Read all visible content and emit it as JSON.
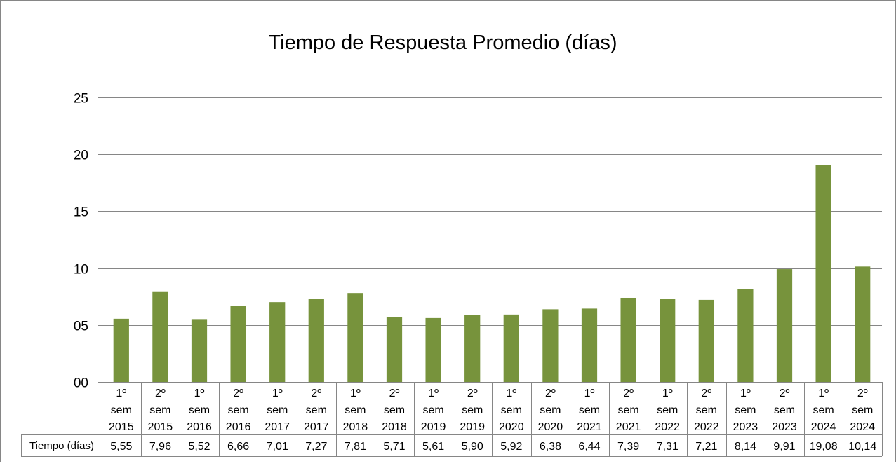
{
  "chart_data": {
    "type": "bar",
    "title": "Tiempo de Respuesta Promedio (días)",
    "xlabel": "",
    "ylabel": "",
    "ylim": [
      0,
      25
    ],
    "yticks": [
      0,
      5,
      10,
      15,
      20,
      25
    ],
    "ytick_labels": [
      "00",
      "05",
      "10",
      "15",
      "20",
      "25"
    ],
    "grid": true,
    "legend": "none",
    "bar_color": "#77933c",
    "categories": [
      [
        "1º",
        "sem",
        "2015"
      ],
      [
        "2º",
        "sem",
        "2015"
      ],
      [
        "1º",
        "sem",
        "2016"
      ],
      [
        "2º",
        "sem",
        "2016"
      ],
      [
        "1º",
        "sem",
        "2017"
      ],
      [
        "2º",
        "sem",
        "2017"
      ],
      [
        "1º",
        "sem",
        "2018"
      ],
      [
        "2º",
        "sem",
        "2018"
      ],
      [
        "1º",
        "sem",
        "2019"
      ],
      [
        "2º",
        "sem",
        "2019"
      ],
      [
        "1º",
        "sem",
        "2020"
      ],
      [
        "2º",
        "sem",
        "2020"
      ],
      [
        "1º",
        "sem",
        "2021"
      ],
      [
        "2º",
        "sem",
        "2021"
      ],
      [
        "1º",
        "sem",
        "2022"
      ],
      [
        "2º",
        "sem",
        "2022"
      ],
      [
        "1º",
        "sem",
        "2023"
      ],
      [
        "2º",
        "sem",
        "2023"
      ],
      [
        "1º",
        "sem",
        "2024"
      ],
      [
        "2º",
        "sem",
        "2024"
      ]
    ],
    "series": [
      {
        "name": "Tiempo (días)",
        "values": [
          5.55,
          7.96,
          5.52,
          6.66,
          7.01,
          7.27,
          7.81,
          5.71,
          5.61,
          5.9,
          5.92,
          6.38,
          6.44,
          7.39,
          7.31,
          7.21,
          8.14,
          9.91,
          19.08,
          10.14
        ],
        "value_labels": [
          "5,55",
          "7,96",
          "5,52",
          "6,66",
          "7,01",
          "7,27",
          "7,81",
          "5,71",
          "5,61",
          "5,90",
          "5,92",
          "6,38",
          "6,44",
          "7,39",
          "7,31",
          "7,21",
          "8,14",
          "9,91",
          "19,08",
          "10,14"
        ]
      }
    ]
  }
}
